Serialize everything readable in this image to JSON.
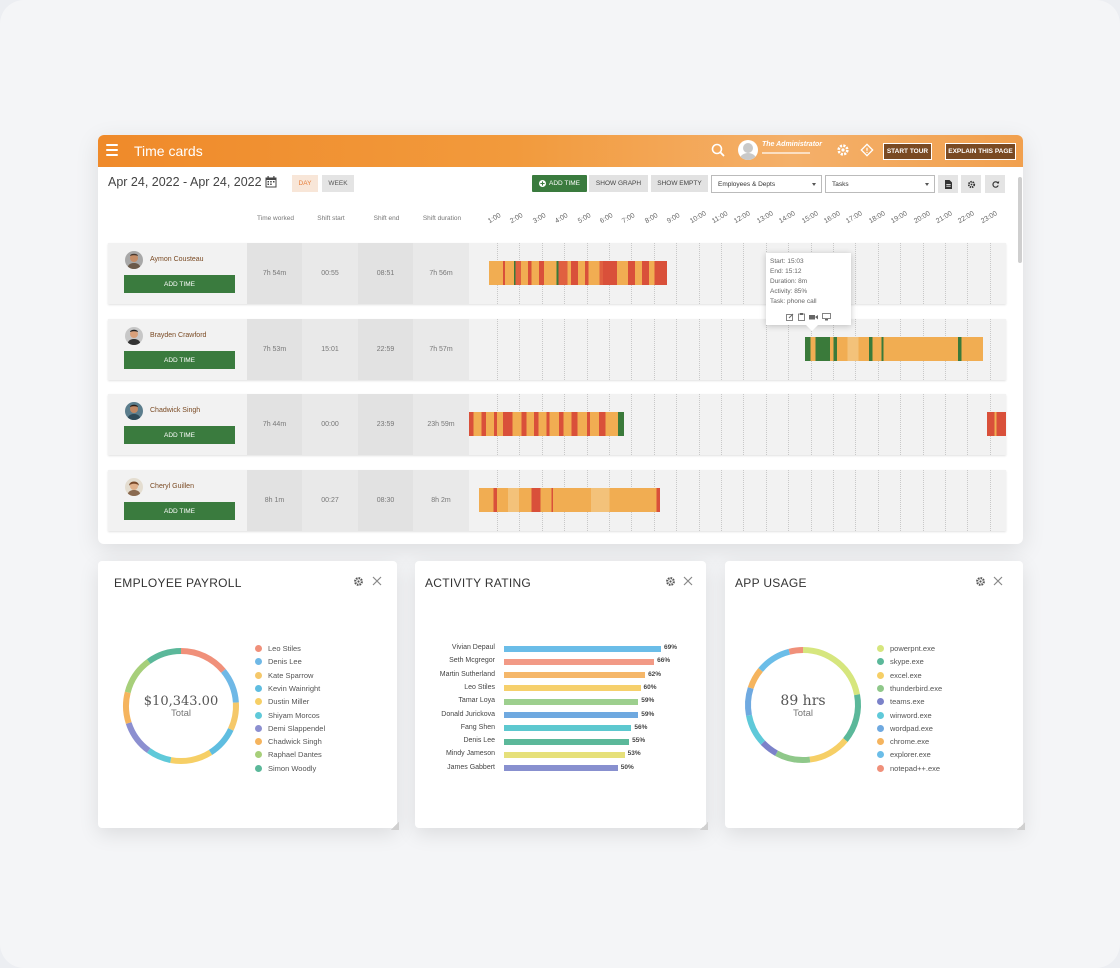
{
  "app": {
    "title": "Time cards",
    "admin_name": "The Administrator",
    "start_tour": "START TOUR",
    "explain_page": "EXPLAIN THIS PAGE"
  },
  "toolbar": {
    "date_range": "Apr 24, 2022 - Apr 24, 2022",
    "day": "DAY",
    "week": "WEEK",
    "add_time": "ADD TIME",
    "show_graph": "SHOW GRAPH",
    "show_empty": "SHOW EMPTY",
    "employees_select": "Employees & Depts",
    "tasks_select": "Tasks"
  },
  "columns": {
    "time_worked": "Time worked",
    "shift_start": "Shift start",
    "shift_end": "Shift end",
    "shift_duration": "Shift duration"
  },
  "hours": [
    "1:00",
    "2:00",
    "3:00",
    "4:00",
    "5:00",
    "6:00",
    "7:00",
    "8:00",
    "9:00",
    "10:00",
    "11:00",
    "12:00",
    "13:00",
    "14:00",
    "15:00",
    "16:00",
    "17:00",
    "18:00",
    "19:00",
    "20:00",
    "21:00",
    "22:00",
    "23:00"
  ],
  "employees": [
    {
      "name": "Aymon Cousteau",
      "add_label": "ADD TIME",
      "time_worked": "7h 54m",
      "shift_start": "00:55",
      "shift_end": "08:51",
      "shift_duration": "7h 56m"
    },
    {
      "name": "Brayden Crawford",
      "add_label": "ADD TIME",
      "time_worked": "7h 53m",
      "shift_start": "15:01",
      "shift_end": "22:59",
      "shift_duration": "7h 57m"
    },
    {
      "name": "Chadwick Singh",
      "add_label": "ADD TIME",
      "time_worked": "7h 44m",
      "shift_start": "00:00",
      "shift_end": "23:59",
      "shift_duration": "23h 59m"
    },
    {
      "name": "Cheryl Guillen",
      "add_label": "ADD TIME",
      "time_worked": "8h 1m",
      "shift_start": "00:27",
      "shift_end": "08:30",
      "shift_duration": "8h 2m"
    }
  ],
  "tooltip": {
    "start": "Start: 15:03",
    "end": "End: 15:12",
    "duration": "Duration: 8m",
    "activity": "Activity: 85%",
    "task": "Task: phone call"
  },
  "payroll": {
    "title": "EMPLOYEE PAYROLL",
    "total_value": "$10,343.00",
    "total_label": "Total",
    "legend": [
      {
        "name": "Leo Stiles",
        "color": "#f0907a"
      },
      {
        "name": "Denis Lee",
        "color": "#6fb8e6"
      },
      {
        "name": "Kate Sparrow",
        "color": "#f5c86a"
      },
      {
        "name": "Kevin Wainright",
        "color": "#5fbde0"
      },
      {
        "name": "Dustin Miller",
        "color": "#f6cf66"
      },
      {
        "name": "Shiyam Morcos",
        "color": "#5fc9d9"
      },
      {
        "name": "Demi Slappendel",
        "color": "#8c8fd0"
      },
      {
        "name": "Chadwick Singh",
        "color": "#f5b45e"
      },
      {
        "name": "Raphael Dantes",
        "color": "#a7cf7a"
      },
      {
        "name": "Simon Woodly",
        "color": "#5bb89a"
      }
    ]
  },
  "activity": {
    "title": "ACTIVITY RATING",
    "rows": [
      {
        "name": "Vivian Depaul",
        "pct": "69%",
        "value": 69,
        "color": "#6bbde8"
      },
      {
        "name": "Seth Mcgregor",
        "pct": "66%",
        "value": 66,
        "color": "#f29a86"
      },
      {
        "name": "Martin Sutherland",
        "pct": "62%",
        "value": 62,
        "color": "#f5b76a"
      },
      {
        "name": "Leo Stiles",
        "pct": "60%",
        "value": 60,
        "color": "#f6d06c"
      },
      {
        "name": "Tamar Loya",
        "pct": "59%",
        "value": 59,
        "color": "#9dcf8e"
      },
      {
        "name": "Donald Jurickova",
        "pct": "59%",
        "value": 59,
        "color": "#6fa9e0"
      },
      {
        "name": "Fang Shen",
        "pct": "56%",
        "value": 56,
        "color": "#5dc8cf"
      },
      {
        "name": "Denis Lee",
        "pct": "55%",
        "value": 55,
        "color": "#5bb89a"
      },
      {
        "name": "Mindy Jameson",
        "pct": "53%",
        "value": 53,
        "color": "#e6e07a"
      },
      {
        "name": "James Gabbert",
        "pct": "50%",
        "value": 50,
        "color": "#8890cf"
      }
    ]
  },
  "apps": {
    "title": "APP USAGE",
    "total_value": "89 hrs",
    "total_label": "Total",
    "legend": [
      {
        "name": "powerpnt.exe",
        "color": "#d6e67e"
      },
      {
        "name": "skype.exe",
        "color": "#5bb89a"
      },
      {
        "name": "excel.exe",
        "color": "#f6cf66"
      },
      {
        "name": "thunderbird.exe",
        "color": "#8fc88a"
      },
      {
        "name": "teams.exe",
        "color": "#7b82c9"
      },
      {
        "name": "winword.exe",
        "color": "#5fc9d9"
      },
      {
        "name": "wordpad.exe",
        "color": "#6fa9e0"
      },
      {
        "name": "chrome.exe",
        "color": "#f5b45e"
      },
      {
        "name": "explorer.exe",
        "color": "#6bbde8"
      },
      {
        "name": "notepad++.exe",
        "color": "#f0907a"
      }
    ]
  }
}
